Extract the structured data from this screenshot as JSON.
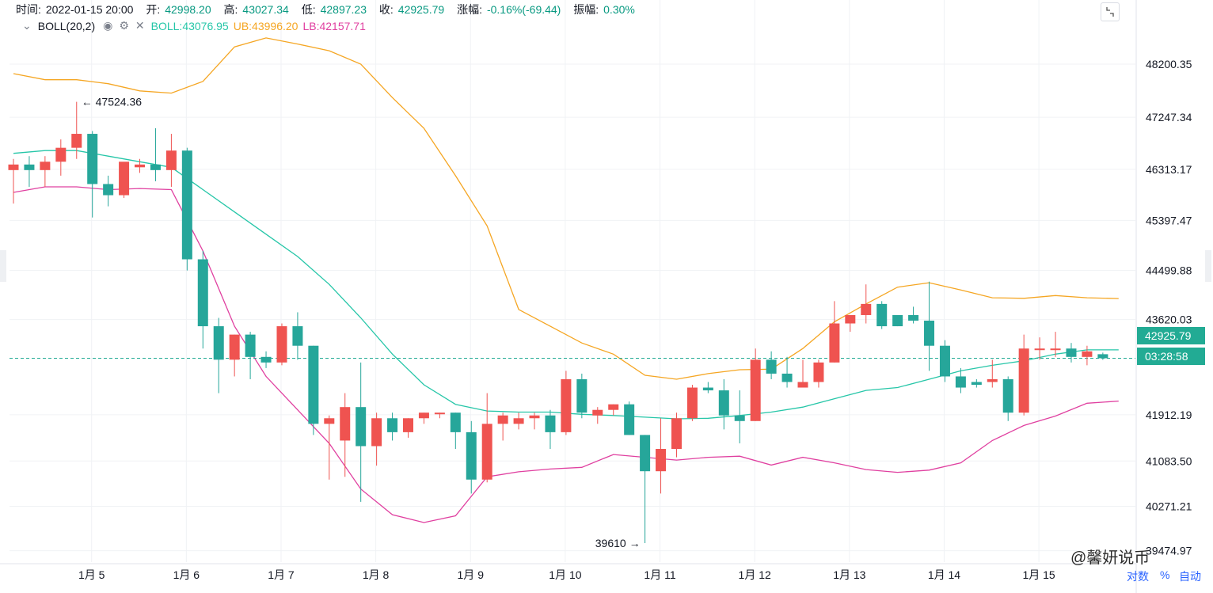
{
  "header": {
    "time_label": "时间:",
    "time_value": "2022-01-15 20:00",
    "open_label": "开:",
    "open_value": "42998.20",
    "high_label": "高:",
    "high_value": "43027.34",
    "low_label": "低:",
    "low_value": "42897.23",
    "close_label": "收:",
    "close_value": "42925.79",
    "change_label": "涨幅:",
    "change_value": "-0.16%(-69.44)",
    "amplitude_label": "振幅:",
    "amplitude_value": "0.30%"
  },
  "indicator": {
    "name": "BOLL(20,2)",
    "mid_text": "BOLL:43076.95",
    "ub_text": "UB:43996.20",
    "lb_text": "LB:42157.71"
  },
  "badges": {
    "last_price": "42925.79",
    "countdown": "03:28:58"
  },
  "bottom": {
    "log_label": "对数",
    "percent_label": "%",
    "auto_label": "自动"
  },
  "watermark": "@馨妍说币",
  "colors": {
    "up": "#ef5350",
    "down": "#26a69a",
    "boll": "#26c6a8",
    "ub": "#f5a623",
    "lb": "#e040a0",
    "last": "#22ab94"
  },
  "chart_data": {
    "type": "candlestick",
    "y_ticks": [
      48200.35,
      47247.34,
      46313.17,
      45397.47,
      44499.88,
      43620.03,
      41912.19,
      41083.5,
      40271.21,
      39474.97
    ],
    "y_tick_labels": [
      "48200.35",
      "47247.34",
      "46313.17",
      "45397.47",
      "44499.88",
      "43620.03",
      "41912.19",
      "41083.50",
      "40271.21",
      "39474.97"
    ],
    "y_range": [
      39270,
      49350
    ],
    "x_tick_labels": [
      "1月 5",
      "1月 6",
      "1月 7",
      "1月 8",
      "1月 9",
      "1月 10",
      "1月 11",
      "1月 12",
      "1月 13",
      "1月 14",
      "1月 15"
    ],
    "x_tick_candle_index": [
      5,
      11,
      17,
      23,
      29,
      35,
      41,
      47,
      53,
      59,
      65
    ],
    "last_price": 42925.79,
    "annotations": [
      {
        "text": "← 47524.36",
        "candle_index": 4,
        "price": 47524.36
      },
      {
        "text": "39610 →",
        "candle_index": 40,
        "price": 39610
      }
    ],
    "candles": [
      [
        46300,
        46500,
        45700,
        46400
      ],
      [
        46400,
        46550,
        46000,
        46300
      ],
      [
        46300,
        46550,
        46000,
        46450
      ],
      [
        46450,
        46850,
        46200,
        46700
      ],
      [
        46700,
        47524.36,
        46500,
        46950
      ],
      [
        46950,
        47000,
        45450,
        46050
      ],
      [
        46050,
        46200,
        45650,
        45850
      ],
      [
        45850,
        46400,
        45800,
        46450
      ],
      [
        46350,
        46500,
        46250,
        46400
      ],
      [
        46400,
        47050,
        46100,
        46300
      ],
      [
        46300,
        46950,
        46000,
        46650
      ],
      [
        46650,
        46700,
        44500,
        44700
      ],
      [
        44700,
        44850,
        43100,
        43500
      ],
      [
        43500,
        43650,
        42300,
        42900
      ],
      [
        42900,
        43350,
        42600,
        43350
      ],
      [
        43350,
        43400,
        42550,
        42950
      ],
      [
        42950,
        43050,
        42750,
        42850
      ],
      [
        42850,
        43550,
        42800,
        43500
      ],
      [
        43500,
        43750,
        42900,
        43150
      ],
      [
        43150,
        43150,
        41550,
        41750
      ],
      [
        41750,
        41900,
        40750,
        41850
      ],
      [
        41450,
        42300,
        40800,
        42050
      ],
      [
        42050,
        42850,
        40350,
        41350
      ],
      [
        41350,
        41950,
        41000,
        41850
      ],
      [
        41850,
        41950,
        41450,
        41600
      ],
      [
        41600,
        41850,
        41500,
        41850
      ],
      [
        41850,
        41950,
        41750,
        41950
      ],
      [
        41950,
        41950,
        41850,
        41950
      ],
      [
        41950,
        41950,
        41300,
        41600
      ],
      [
        41600,
        41800,
        40500,
        40750
      ],
      [
        40750,
        42300,
        40700,
        41750
      ],
      [
        41750,
        41950,
        41450,
        41900
      ],
      [
        41750,
        41950,
        41650,
        41850
      ],
      [
        41850,
        41950,
        41650,
        41900
      ],
      [
        41900,
        42000,
        41300,
        41600
      ],
      [
        41600,
        42700,
        41550,
        42550
      ],
      [
        42550,
        42650,
        41850,
        41950
      ],
      [
        41900,
        42050,
        41750,
        42000
      ],
      [
        42000,
        42100,
        41900,
        42100
      ],
      [
        42100,
        42150,
        41550,
        41550
      ],
      [
        41550,
        41550,
        39610,
        40900
      ],
      [
        40900,
        41850,
        40500,
        41300
      ],
      [
        41300,
        41950,
        41150,
        41850
      ],
      [
        41850,
        42450,
        41800,
        42400
      ],
      [
        42400,
        42500,
        42300,
        42350
      ],
      [
        42350,
        42550,
        41650,
        41900
      ],
      [
        41900,
        42350,
        41400,
        41800
      ],
      [
        41800,
        43100,
        41800,
        42900
      ],
      [
        42900,
        43050,
        42550,
        42650
      ],
      [
        42650,
        42950,
        42400,
        42500
      ],
      [
        42400,
        42900,
        42400,
        42500
      ],
      [
        42500,
        42900,
        42400,
        42850
      ],
      [
        42850,
        43950,
        42850,
        43550
      ],
      [
        43550,
        43700,
        43400,
        43700
      ],
      [
        43700,
        44250,
        43550,
        43900
      ],
      [
        43900,
        43950,
        43450,
        43500
      ],
      [
        43700,
        43700,
        43500,
        43500
      ],
      [
        43700,
        43850,
        43550,
        43600
      ],
      [
        43600,
        44300,
        42700,
        43150
      ],
      [
        43150,
        43250,
        42500,
        42600
      ],
      [
        42600,
        42750,
        42300,
        42400
      ],
      [
        42500,
        42550,
        42400,
        42450
      ],
      [
        42500,
        42900,
        42400,
        42550
      ],
      [
        42550,
        42600,
        41800,
        41950
      ],
      [
        41950,
        43350,
        41900,
        43100
      ],
      [
        43100,
        43300,
        42900,
        43100
      ],
      [
        43100,
        43400,
        42950,
        43100
      ],
      [
        43100,
        43200,
        42850,
        42950
      ],
      [
        42950,
        43150,
        42800,
        43050
      ],
      [
        42998.2,
        43027.34,
        42897.23,
        42925.79
      ]
    ],
    "boll_mid": [
      [
        0,
        46600
      ],
      [
        2,
        46650
      ],
      [
        4,
        46650
      ],
      [
        6,
        46550
      ],
      [
        8,
        46450
      ],
      [
        10,
        46350
      ],
      [
        12,
        45950
      ],
      [
        14,
        45550
      ],
      [
        16,
        45150
      ],
      [
        18,
        44750
      ],
      [
        20,
        44250
      ],
      [
        22,
        43650
      ],
      [
        24,
        43000
      ],
      [
        26,
        42450
      ],
      [
        28,
        42100
      ],
      [
        30,
        41980
      ],
      [
        32,
        41960
      ],
      [
        34,
        41960
      ],
      [
        36,
        41920
      ],
      [
        38,
        41900
      ],
      [
        40,
        41870
      ],
      [
        42,
        41840
      ],
      [
        44,
        41850
      ],
      [
        46,
        41900
      ],
      [
        48,
        41960
      ],
      [
        50,
        42050
      ],
      [
        52,
        42200
      ],
      [
        54,
        42350
      ],
      [
        56,
        42400
      ],
      [
        58,
        42550
      ],
      [
        60,
        42700
      ],
      [
        62,
        42800
      ],
      [
        64,
        42880
      ],
      [
        66,
        43000
      ],
      [
        68,
        43076.95
      ],
      [
        70,
        43076.95
      ]
    ],
    "boll_ub": [
      [
        0,
        48030
      ],
      [
        2,
        47920
      ],
      [
        4,
        47920
      ],
      [
        6,
        47850
      ],
      [
        8,
        47720
      ],
      [
        10,
        47680
      ],
      [
        12,
        47890
      ],
      [
        14,
        48510
      ],
      [
        16,
        48670
      ],
      [
        18,
        48560
      ],
      [
        20,
        48440
      ],
      [
        22,
        48200
      ],
      [
        24,
        47600
      ],
      [
        26,
        47050
      ],
      [
        28,
        46200
      ],
      [
        30,
        45300
      ],
      [
        32,
        43800
      ],
      [
        34,
        43500
      ],
      [
        36,
        43200
      ],
      [
        38,
        43000
      ],
      [
        40,
        42620
      ],
      [
        42,
        42550
      ],
      [
        44,
        42650
      ],
      [
        46,
        42720
      ],
      [
        48,
        42730
      ],
      [
        50,
        43100
      ],
      [
        52,
        43580
      ],
      [
        54,
        43900
      ],
      [
        56,
        44200
      ],
      [
        58,
        44280
      ],
      [
        60,
        44150
      ],
      [
        62,
        44010
      ],
      [
        64,
        44000
      ],
      [
        66,
        44050
      ],
      [
        68,
        44010
      ],
      [
        70,
        43996.2
      ]
    ],
    "boll_lb": [
      [
        0,
        45900
      ],
      [
        2,
        46000
      ],
      [
        4,
        46000
      ],
      [
        6,
        45950
      ],
      [
        8,
        45970
      ],
      [
        10,
        45950
      ],
      [
        12,
        44850
      ],
      [
        14,
        43500
      ],
      [
        16,
        42600
      ],
      [
        18,
        42000
      ],
      [
        20,
        41400
      ],
      [
        22,
        40580
      ],
      [
        24,
        40120
      ],
      [
        26,
        39980
      ],
      [
        28,
        40100
      ],
      [
        30,
        40800
      ],
      [
        32,
        40890
      ],
      [
        34,
        40940
      ],
      [
        36,
        40970
      ],
      [
        38,
        41200
      ],
      [
        40,
        41150
      ],
      [
        42,
        41100
      ],
      [
        44,
        41150
      ],
      [
        46,
        41170
      ],
      [
        48,
        41010
      ],
      [
        50,
        41150
      ],
      [
        52,
        41050
      ],
      [
        54,
        40930
      ],
      [
        56,
        40880
      ],
      [
        58,
        40920
      ],
      [
        60,
        41050
      ],
      [
        62,
        41450
      ],
      [
        64,
        41720
      ],
      [
        66,
        41890
      ],
      [
        68,
        42120
      ],
      [
        70,
        42157.71
      ]
    ]
  }
}
